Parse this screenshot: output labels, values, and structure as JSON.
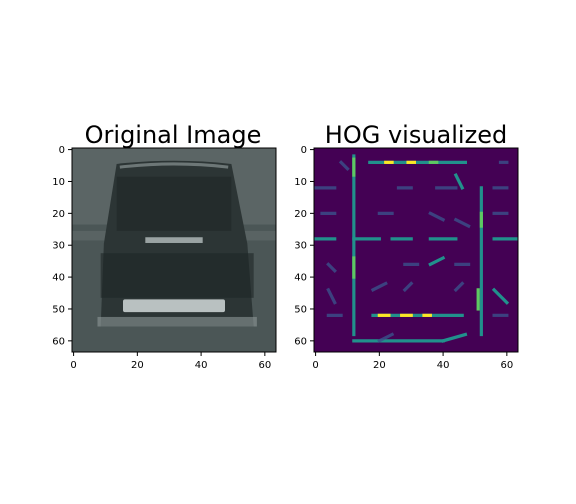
{
  "figure": {
    "panels": [
      {
        "title": "Original Image",
        "x_ticks": [
          "0",
          "20",
          "40",
          "60"
        ],
        "y_ticks": [
          "0",
          "10",
          "20",
          "30",
          "40",
          "50",
          "60"
        ]
      },
      {
        "title": "HOG visualized",
        "x_ticks": [
          "0",
          "20",
          "40",
          "60"
        ],
        "y_ticks": [
          "0",
          "10",
          "20",
          "30",
          "40",
          "50",
          "60"
        ]
      }
    ]
  },
  "chart_data": [
    {
      "type": "heatmap",
      "title": "Original Image",
      "xlim": [
        0,
        63
      ],
      "ylim": [
        63,
        0
      ],
      "x_ticks": [
        0,
        20,
        40,
        60
      ],
      "y_ticks": [
        0,
        10,
        20,
        30,
        40,
        50,
        60
      ],
      "colors": {
        "background": "#4b5656",
        "road_top": "#6a7373",
        "car_body": "#2c3535",
        "roof_highlight": "#7e8888",
        "plate_bar": "#b9c1c1",
        "lower_bumper": "#8d9797"
      }
    },
    {
      "type": "heatmap",
      "title": "HOG visualized",
      "xlim": [
        0,
        63
      ],
      "ylim": [
        63,
        0
      ],
      "x_ticks": [
        0,
        20,
        40,
        60
      ],
      "y_ticks": [
        0,
        10,
        20,
        30,
        40,
        50,
        60
      ],
      "colormap": [
        "#440154",
        "#3b528b",
        "#21918c",
        "#5ec962",
        "#fde725"
      ]
    }
  ]
}
